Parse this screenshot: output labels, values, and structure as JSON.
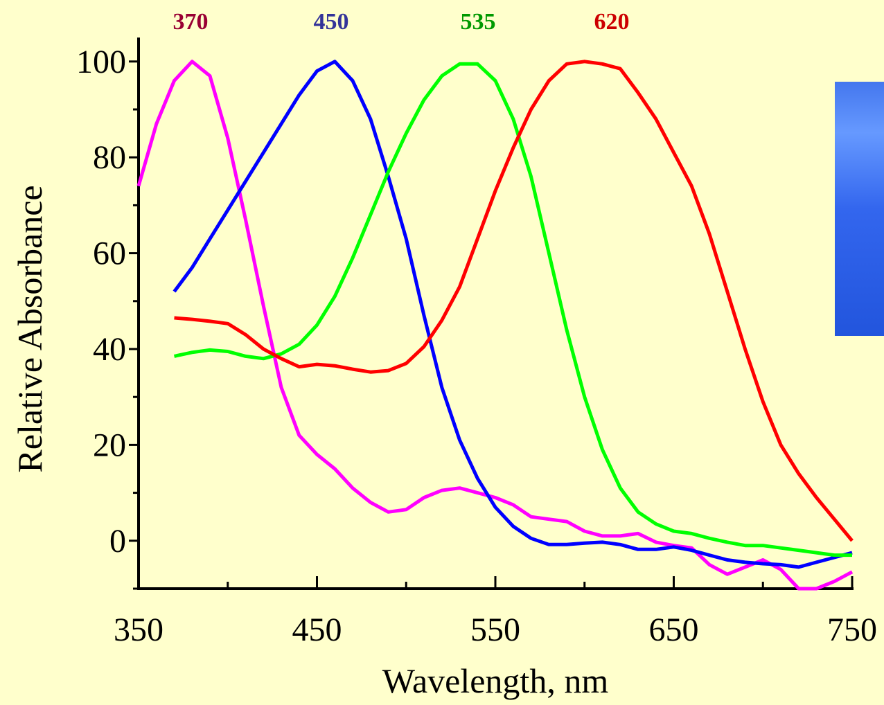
{
  "chart_data": {
    "type": "line",
    "x_label": "Wavelength,  nm",
    "y_label": "Relative Absorbance",
    "xlim": [
      350,
      750
    ],
    "ylim": [
      -10,
      105
    ],
    "xticks": [
      350,
      450,
      550,
      650,
      750
    ],
    "yticks": [
      0,
      20,
      40,
      60,
      80,
      100
    ],
    "x": [
      350,
      360,
      370,
      380,
      390,
      400,
      410,
      420,
      430,
      440,
      450,
      460,
      470,
      480,
      490,
      500,
      510,
      520,
      530,
      540,
      550,
      560,
      570,
      580,
      590,
      600,
      610,
      620,
      630,
      640,
      650,
      660,
      670,
      680,
      690,
      700,
      710,
      720,
      730,
      740,
      750
    ],
    "series": [
      {
        "name": "370",
        "color": "#ff00ff",
        "label_color": "#990033",
        "values": [
          74,
          87,
          96,
          100,
          97,
          84,
          67,
          49,
          32,
          22,
          18,
          15,
          11,
          8,
          6,
          6.5,
          9,
          10.5,
          11,
          10,
          9,
          7.5,
          5,
          4.5,
          4,
          2,
          1,
          1,
          1.5,
          -0.3,
          -1,
          -1.5,
          -5,
          -7,
          -5.5,
          -4,
          -6,
          -10,
          -10,
          -8.5,
          -6.5
        ]
      },
      {
        "name": "450",
        "color": "#0000ff",
        "label_color": "#333399",
        "values": [
          null,
          null,
          52,
          57,
          63,
          69,
          75,
          81,
          87,
          93,
          98,
          100,
          96,
          88,
          76,
          63,
          47,
          32,
          21,
          13,
          7,
          3,
          0.5,
          -0.8,
          -0.8,
          -0.5,
          -0.3,
          -0.8,
          -1.8,
          -1.8,
          -1.3,
          -2,
          -3,
          -4,
          -4.5,
          -4.8,
          -5,
          -5.5,
          -4.5,
          -3.5,
          -2.5
        ]
      },
      {
        "name": "535",
        "color": "#00ff00",
        "label_color": "#009900",
        "values": [
          null,
          null,
          38.5,
          39.3,
          39.8,
          39.5,
          38.5,
          38,
          39,
          41,
          45,
          51,
          59,
          68,
          77,
          85,
          92,
          97,
          99.5,
          99.5,
          96,
          88,
          76,
          60,
          44,
          30,
          19,
          11,
          6,
          3.5,
          2,
          1.5,
          0.5,
          -0.3,
          -1,
          -1,
          -1.5,
          -2,
          -2.5,
          -3,
          -3
        ]
      },
      {
        "name": "620",
        "color": "#ff0000",
        "label_color": "#cc0000",
        "values": [
          null,
          null,
          46.5,
          46.2,
          45.8,
          45.3,
          43,
          40,
          38,
          36.3,
          36.8,
          36.5,
          35.8,
          35.2,
          35.5,
          37,
          40.5,
          46,
          53,
          63,
          73,
          82,
          90,
          96,
          99.5,
          100,
          99.5,
          98.5,
          93.5,
          88,
          81,
          74,
          64,
          52,
          40,
          29,
          20,
          14,
          9,
          4.5,
          0
        ]
      }
    ]
  }
}
